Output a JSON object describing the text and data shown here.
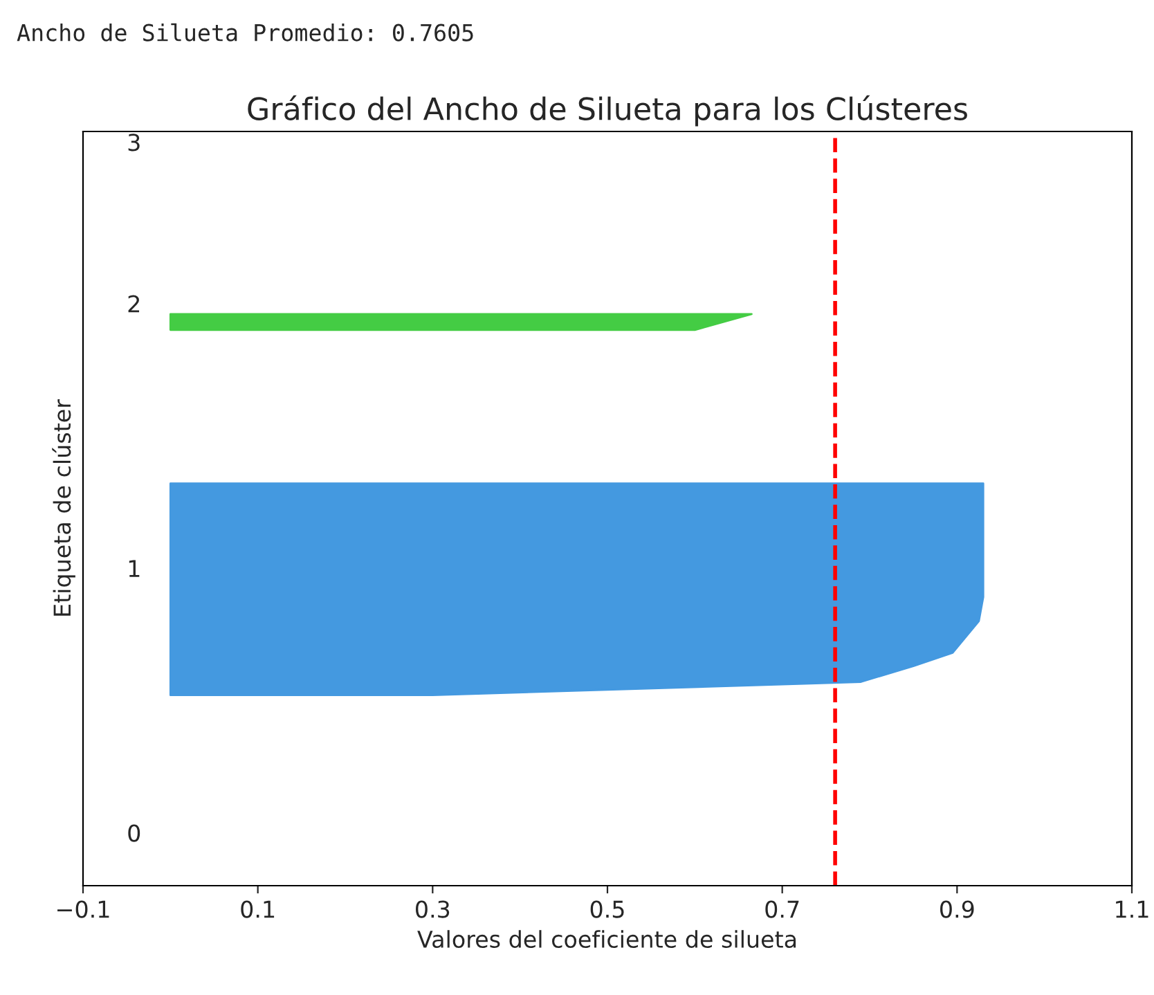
{
  "chart_data": {
    "type": "area",
    "orientation": "horizontal",
    "title": "Gráfico del Ancho de Silueta para los Clústeres",
    "xlabel": "Valores del coeficiente de silueta",
    "ylabel": "Etiqueta de clúster",
    "annotations": [
      "Ancho de Silueta Promedio: 0.7605"
    ],
    "series": [
      {
        "color": "#4499e0",
        "x": [
          0.52,
          0.57,
          0.63,
          0.68,
          0.8,
          0.89,
          1.32
        ],
        "values": [
          0.3,
          0.79,
          0.85,
          0.895,
          0.925,
          0.93,
          0.93
        ]
      },
      {
        "color": "#44cc44",
        "x": [
          1.9,
          1.96
        ],
        "values": [
          0.6,
          0.665
        ]
      }
    ],
    "xlim": [
      -0.1,
      1.1
    ],
    "xticks": [
      {
        "value": -0.1,
        "label": "−0.1"
      },
      0.1,
      0.3,
      0.5,
      0.7,
      0.9,
      1.1
    ],
    "ylim": [
      -0.2,
      2.65
    ],
    "yticks": [
      0,
      1,
      2,
      {
        "value": 2.61,
        "label": "3"
      }
    ],
    "ref_lines": [
      {
        "axis": "x",
        "value": 0.7605,
        "color": "#ff0000",
        "line_style": "dashed"
      }
    ]
  }
}
